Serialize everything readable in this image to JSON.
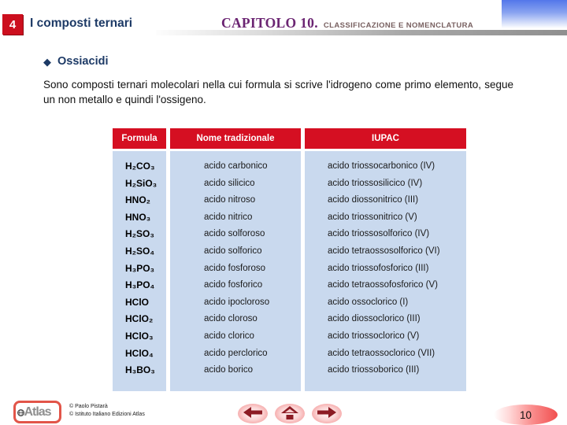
{
  "page": {
    "slide_number": "4",
    "slide_title": "I composti ternari",
    "chapter_title": "CAPITOLO 10.",
    "chapter_subtitle": "CLASSIFICAZIONE E NOMENCLATURA",
    "page_number": "10"
  },
  "section": {
    "bullet_marker": "◆",
    "bullet_label": "Ossiacidi",
    "paragraph": "Sono composti ternari molecolari nella cui formula si scrive l'idrogeno come primo elemento, segue un non metallo e quindi l'ossigeno."
  },
  "table": {
    "headers": [
      "Formula",
      "Nome tradizionale",
      "IUPAC"
    ],
    "rows": [
      [
        "H₂CO₃",
        "acido carbonico",
        "acido triossocarbonico (IV)"
      ],
      [
        "H₂SiO₃",
        "acido silicico",
        "acido triossosilicico (IV)"
      ],
      [
        "HNO₂",
        "acido nitroso",
        "acido diossonitrico (III)"
      ],
      [
        "HNO₃",
        "acido nitrico",
        "acido triossonitrico (V)"
      ],
      [
        "H₂SO₃",
        "acido solforoso",
        "acido triossosolforico (IV)"
      ],
      [
        "H₂SO₄",
        "acido solforico",
        "acido tetraossosolforico (VI)"
      ],
      [
        "H₃PO₃",
        "acido fosforoso",
        "acido triossofosforico (III)"
      ],
      [
        "H₃PO₄",
        "acido fosforico",
        "acido tetraossofosforico (V)"
      ],
      [
        "HClO",
        "acido ipocloroso",
        "acido ossoclorico (I)"
      ],
      [
        "HClO₂",
        "acido cloroso",
        "acido diossoclorico (III)"
      ],
      [
        "HClO₃",
        "acido clorico",
        "acido triossoclorico (V)"
      ],
      [
        "HClO₄",
        "acido perclorico",
        "acido tetraossoclorico (VII)"
      ],
      [
        "H₃BO₃",
        "acido borico",
        "acido triossoborico (III)"
      ]
    ]
  },
  "footer": {
    "logo_text": "Atlas",
    "credits": [
      "© Paolo Pistarà",
      "© Istituto Italiano Edizioni Atlas"
    ],
    "nav_icons": [
      "back-arrow",
      "home",
      "forward-arrow"
    ]
  },
  "colors": {
    "header_red": "#d50f22",
    "slide_number_red": "#cc0f1e",
    "table_body_blue": "#c9d9ee",
    "title_navy": "#1d3a66",
    "chapter_purple": "#6b2472",
    "nav_arrow_maroon": "#8c1c24",
    "corner_blue": "#5377ea"
  }
}
